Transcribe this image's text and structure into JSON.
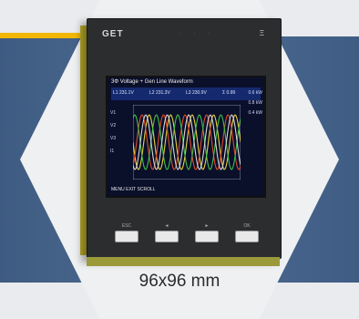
{
  "device": {
    "logo": "GET",
    "model": "Ξ",
    "indicators": "· · ·",
    "screen": {
      "title": "3Φ Voltage + Gen Line Waveform",
      "rows": [
        "L1  231.1V",
        "L2  231.3V",
        "L3  230.9V",
        "Σ  0.99"
      ],
      "side": [
        "0.6 kW",
        "0.8 kW",
        "0.4 kW"
      ],
      "left": [
        "V1",
        "V2",
        "V3",
        "I1"
      ],
      "footer": "MENU  EXIT  SCROLL"
    },
    "keys": [
      "ESC",
      "◄",
      "►",
      "OK"
    ]
  },
  "caption": "96x96 mm",
  "colors": {
    "band": "#4f6d93",
    "stripe": "#f2b705",
    "hexagon": "#eef0f2"
  }
}
